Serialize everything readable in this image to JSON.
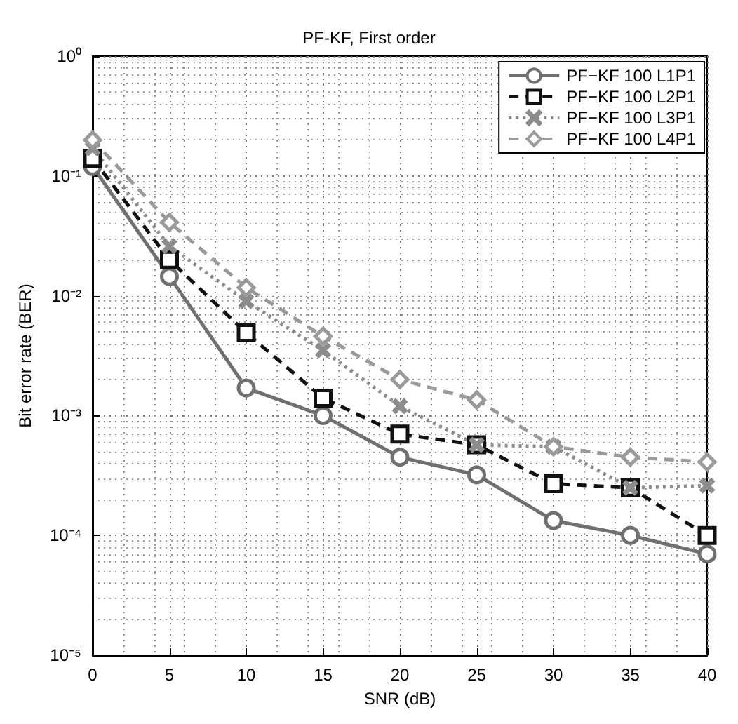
{
  "chart_data": {
    "type": "line",
    "title": "PF-KF, First order",
    "xlabel": "SNR (dB)",
    "ylabel": "Bit error rate (BER)",
    "x": [
      0,
      5,
      10,
      15,
      20,
      25,
      30,
      35,
      40
    ],
    "series": [
      {
        "name": "PF−KF 100 L1P1",
        "color": "#707070",
        "marker": "circle",
        "line_style": "solid",
        "values": [
          0.12,
          0.0145,
          0.0017,
          0.001,
          0.00045,
          0.00032,
          0.000133,
          0.0001,
          7e-05
        ]
      },
      {
        "name": "PF−KF 100 L2P1",
        "color": "#111111",
        "marker": "square",
        "line_style": "dashed",
        "values": [
          0.14,
          0.02,
          0.0049,
          0.0014,
          0.0007,
          0.00057,
          0.00027,
          0.00025,
          0.0001
        ]
      },
      {
        "name": "PF−KF 100 L3P1",
        "color": "#8c8c8c",
        "marker": "cross",
        "line_style": "dotted",
        "values": [
          0.17,
          0.026,
          0.009,
          0.0035,
          0.0012,
          0.00057,
          0.00055,
          0.00025,
          0.00026
        ]
      },
      {
        "name": "PF−KF 100 L4P1",
        "color": "#9a9a9a",
        "marker": "diamond",
        "line_style": "dashed",
        "values": [
          0.2,
          0.041,
          0.0117,
          0.0046,
          0.002,
          0.00135,
          0.00055,
          0.00045,
          0.00041
        ]
      }
    ],
    "log": "y",
    "xlim": [
      0,
      40
    ],
    "xticks": [
      0,
      5,
      10,
      15,
      20,
      25,
      30,
      35,
      40
    ],
    "ylim": [
      1e-05,
      1
    ],
    "yticks": [
      {
        "value": 1e-05,
        "label": "10⁻⁵"
      },
      {
        "value": 0.0001,
        "label": "10⁻⁴"
      },
      {
        "value": 0.001,
        "label": "10⁻³"
      },
      {
        "value": 0.01,
        "label": "10⁻²"
      },
      {
        "value": 0.1,
        "label": "10⁻¹"
      },
      {
        "value": 1,
        "label": "10⁰"
      }
    ],
    "grid": true,
    "legend": "top right"
  }
}
